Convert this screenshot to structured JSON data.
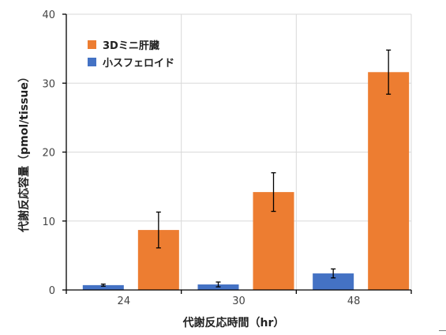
{
  "chart_data": {
    "type": "bar",
    "categories": [
      "24",
      "30",
      "48"
    ],
    "series": [
      {
        "name": "小スフェロイド",
        "values": [
          0.7,
          0.8,
          2.4
        ],
        "errors": [
          0.15,
          0.35,
          0.65
        ],
        "color": "#4472c4"
      },
      {
        "name": "3Dミニ肝臓",
        "values": [
          8.7,
          14.2,
          31.6
        ],
        "errors": [
          2.6,
          2.8,
          3.2
        ],
        "color": "#ed7d31"
      }
    ],
    "xlabel": "代謝反応時間（hr）",
    "ylabel": "代謝反応容量（pmol/tissue）",
    "ylim": [
      0,
      40
    ],
    "yticks": [
      0,
      10,
      20,
      30,
      40
    ],
    "grid": true,
    "legend_position": "top-left"
  }
}
